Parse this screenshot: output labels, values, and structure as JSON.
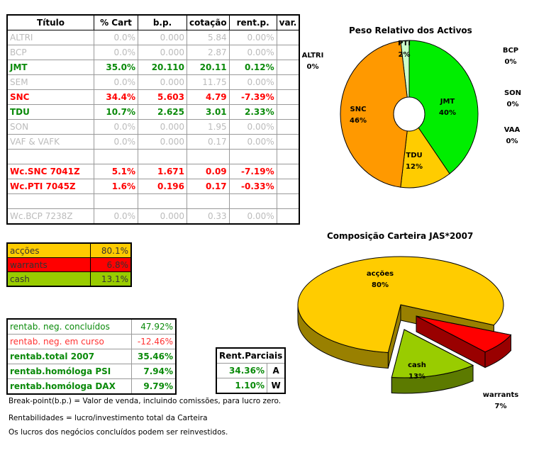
{
  "main_table": {
    "headers": [
      "Título",
      "% Cart",
      "b.p.",
      "cotação",
      "rent.p.",
      "var."
    ],
    "rows": [
      {
        "titulo": "ALTRI",
        "cart": "0.0%",
        "bp": "0.000",
        "cot": "5.84",
        "rent": "0.00%",
        "var": "",
        "style": "gray"
      },
      {
        "titulo": "BCP",
        "cart": "0.0%",
        "bp": "0.000",
        "cot": "2.87",
        "rent": "0.00%",
        "var": "",
        "style": "gray"
      },
      {
        "titulo": "JMT",
        "cart": "35.0%",
        "bp": "20.110",
        "cot": "20.11",
        "rent": "0.12%",
        "var": "",
        "style": "green"
      },
      {
        "titulo": "SEM",
        "cart": "0.0%",
        "bp": "0.000",
        "cot": "11.75",
        "rent": "0.00%",
        "var": "",
        "style": "gray"
      },
      {
        "titulo": "SNC",
        "cart": "34.4%",
        "bp": "5.603",
        "cot": "4.79",
        "rent": "-7.39%",
        "var": "",
        "style": "red"
      },
      {
        "titulo": "TDU",
        "cart": "10.7%",
        "bp": "2.625",
        "cot": "3.01",
        "rent": "2.33%",
        "var": "",
        "style": "green"
      },
      {
        "titulo": "SON",
        "cart": "0.0%",
        "bp": "0.000",
        "cot": "1.95",
        "rent": "0.00%",
        "var": "",
        "style": "gray"
      },
      {
        "titulo": "VAF & VAFK",
        "cart": "0.0%",
        "bp": "0.000",
        "cot": "0.17",
        "rent": "0.00%",
        "var": "",
        "style": "gray"
      },
      {
        "titulo": "",
        "cart": "",
        "bp": "",
        "cot": "",
        "rent": "",
        "var": "",
        "style": "gray"
      },
      {
        "titulo": "Wc.SNC 7041Z",
        "cart": "5.1%",
        "bp": "1.671",
        "cot": "0.09",
        "rent": "-7.19%",
        "var": "",
        "style": "red"
      },
      {
        "titulo": "Wc.PTI 7045Z",
        "cart": "1.6%",
        "bp": "0.196",
        "cot": "0.17",
        "rent": "-0.33%",
        "var": "",
        "style": "red"
      },
      {
        "titulo": "",
        "cart": "",
        "bp": "",
        "cot": "",
        "rent": "",
        "var": "",
        "style": "gray"
      },
      {
        "titulo": "Wc.BCP 7238Z",
        "cart": "0.0%",
        "bp": "0.000",
        "cot": "0.33",
        "rent": "0.00%",
        "var": "",
        "style": "gray"
      }
    ]
  },
  "allocation": [
    {
      "label": "acções",
      "value": "80.1%",
      "color": "#ffcc00"
    },
    {
      "label": "warrants",
      "value": "6.8%",
      "color": "#ff0000"
    },
    {
      "label": "cash",
      "value": "13.1%",
      "color": "#99cc00"
    }
  ],
  "rentab": [
    {
      "label": "rentab. neg. concluídos",
      "value": "47.92%",
      "color": "#0a8a0a",
      "bold": false
    },
    {
      "label": "rentab. neg. em curso",
      "value": "-12.46%",
      "color": "#ff3333",
      "bold": false
    },
    {
      "label": "rentab.total 2007",
      "value": "35.46%",
      "color": "#0a8a0a",
      "bold": true
    },
    {
      "label": "rentab.homóloga PSI",
      "value": "7.94%",
      "color": "#0a8a0a",
      "bold": true
    },
    {
      "label": "rentab.homóloga DAX",
      "value": "9.79%",
      "color": "#0a8a0a",
      "bold": true
    }
  ],
  "rent_parciais": {
    "header": "Rent.Parciais",
    "rows": [
      {
        "value": "34.36%",
        "code": "A"
      },
      {
        "value": "1.10%",
        "code": "W"
      }
    ]
  },
  "notes": [
    "Break-point(b.p.) = Valor de venda, incluindo comissões, para lucro zero.",
    "Rentabilidades = lucro/investimento total da Carteira",
    "Os lucros dos negócios concluídos podem ser reinvestidos."
  ],
  "chart_data": [
    {
      "type": "pie",
      "title": "Peso Relativo dos Activos",
      "categories": [
        "JMT",
        "TDU",
        "SNC",
        "PTI",
        "ALTRI",
        "BCP",
        "SON",
        "VAA"
      ],
      "values": [
        40,
        12,
        46,
        2,
        0,
        0,
        0,
        0
      ],
      "labels": [
        "40%",
        "12%",
        "46%",
        "2%",
        "0%",
        "0%",
        "0%",
        "0%"
      ],
      "colors": [
        "#00ee00",
        "#ffcc00",
        "#ff9900",
        "#ccffcc"
      ]
    },
    {
      "type": "pie",
      "title": "Composição Carteira JAS*2007",
      "categories": [
        "acções",
        "warrants",
        "cash"
      ],
      "values": [
        80,
        7,
        13
      ],
      "labels": [
        "80%",
        "7%",
        "13%"
      ],
      "colors": [
        "#ffcc00",
        "#ff0000",
        "#99cc00"
      ]
    }
  ]
}
